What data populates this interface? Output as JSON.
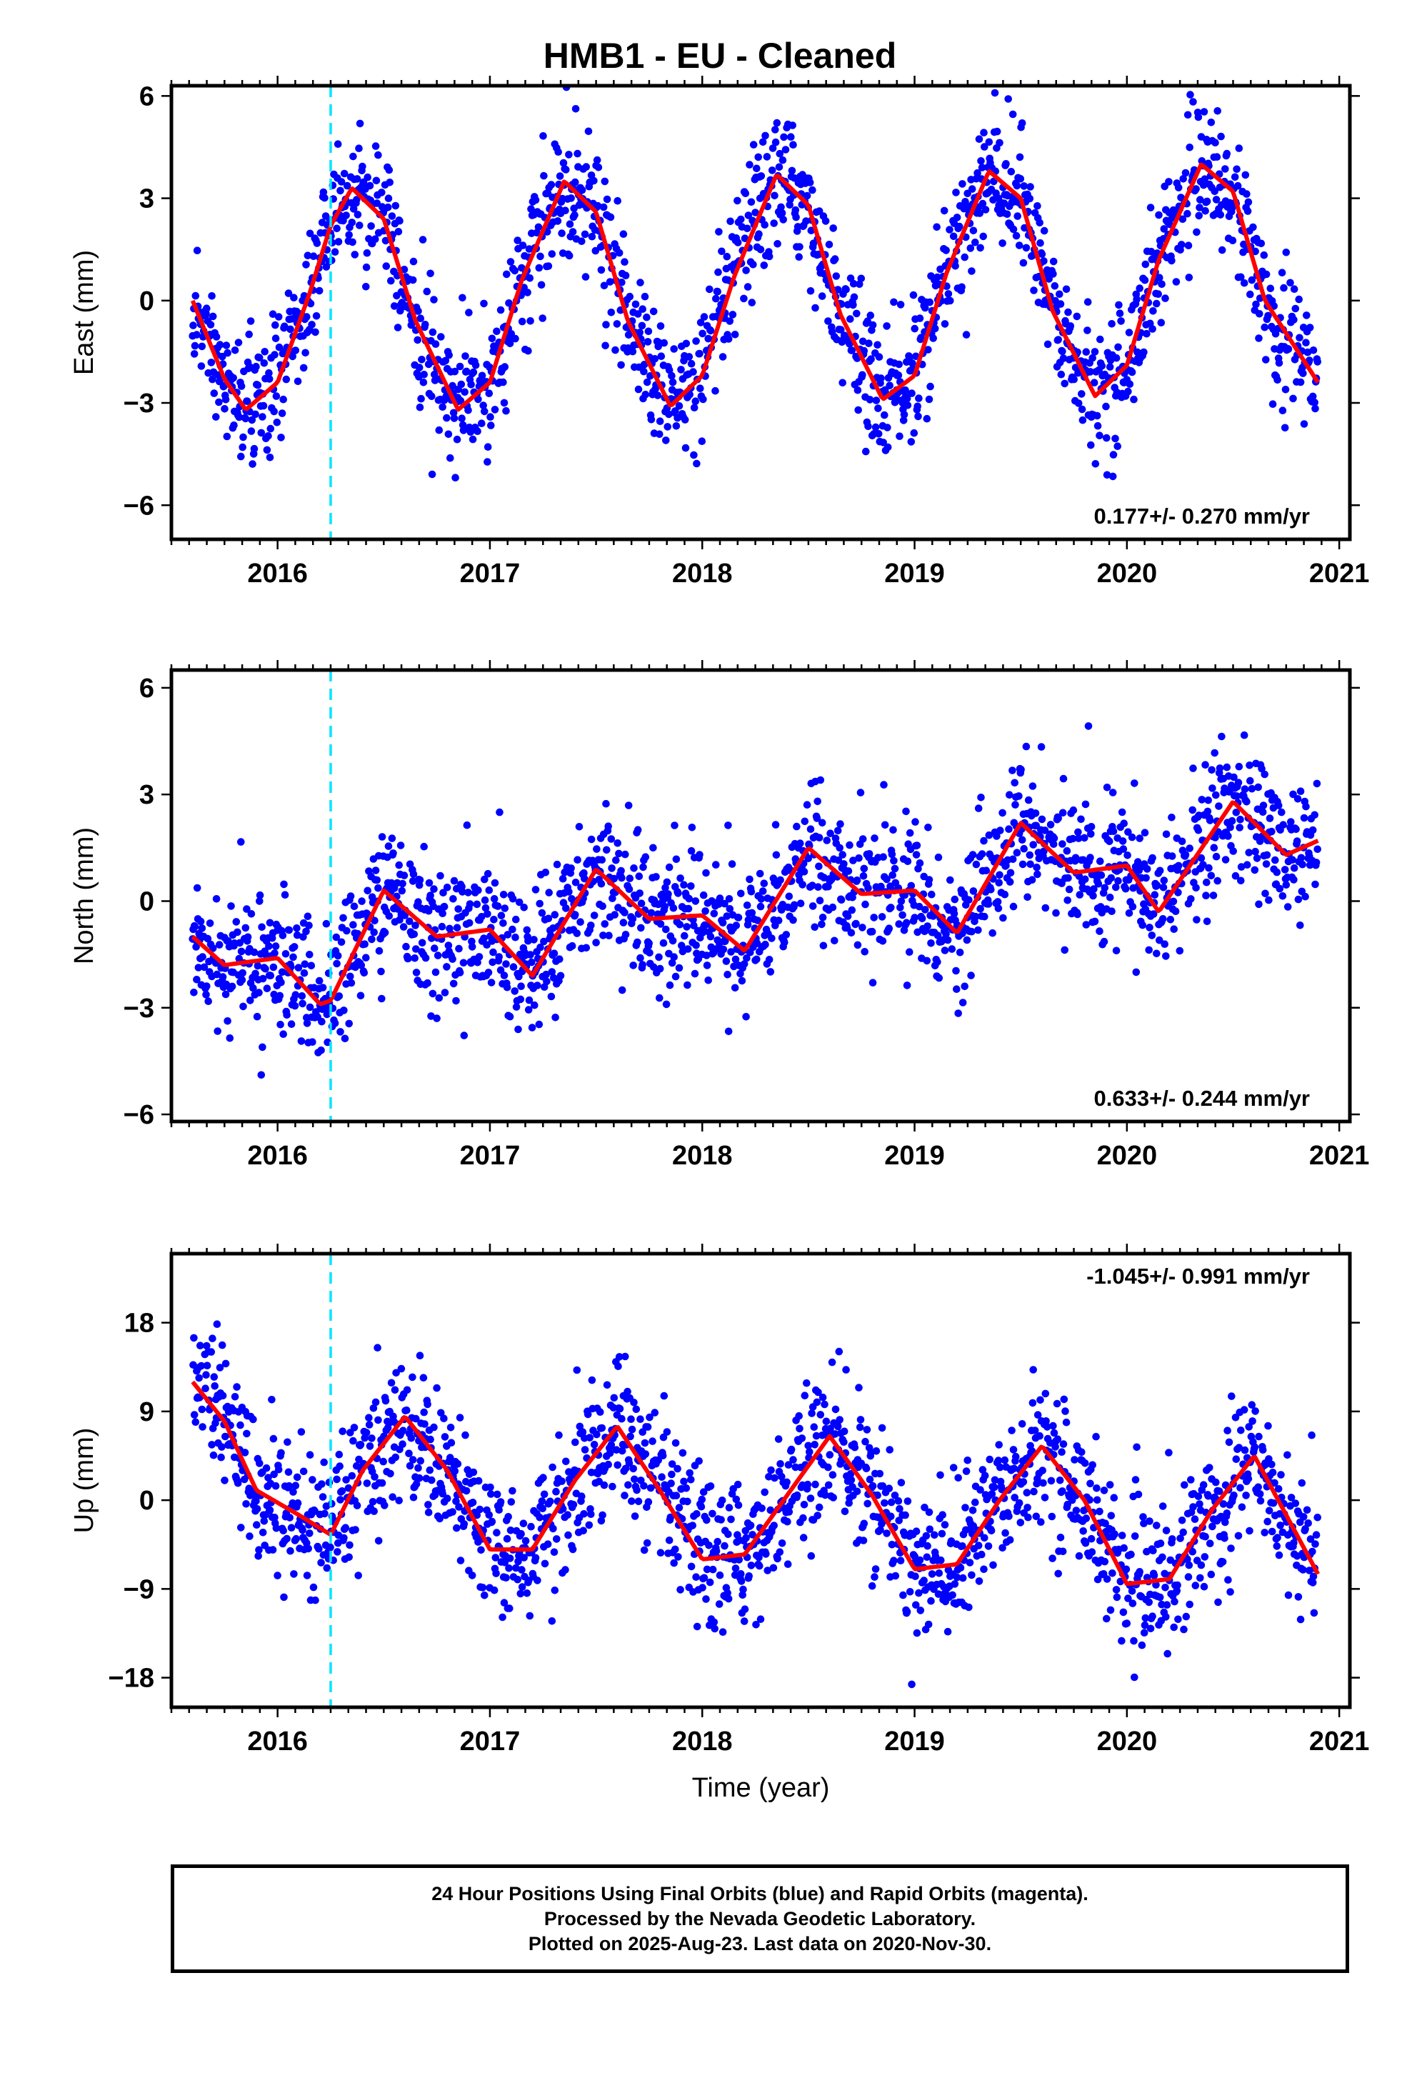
{
  "title": "HMB1  - EU - Cleaned",
  "footer": {
    "lines": [
      "24 Hour Positions Using Final Orbits (blue) and Rapid Orbits (magenta).",
      "Processed by the Nevada Geodetic Laboratory.",
      "Plotted on 2025-Aug-23. Last data on 2020-Nov-30."
    ]
  },
  "colors": {
    "data": "#0000ff",
    "fit": "#ff0000",
    "event_line": "#00e5ff",
    "frame": "#000000"
  },
  "chart_data": [
    {
      "type": "scatter",
      "name": "east",
      "ylabel": "East (mm)",
      "xlabel": "",
      "xlim": [
        2015.5,
        2021.05
      ],
      "ylim": [
        -7,
        6.3
      ],
      "x_ticks": [
        2016,
        2017,
        2018,
        2019,
        2020,
        2021
      ],
      "y_ticks": [
        -6,
        -3,
        0,
        3,
        6
      ],
      "y_tick_labels": [
        "−6",
        "−3",
        "0",
        "3",
        "6"
      ],
      "event_line_x": 2016.25,
      "rate_label": "0.177+/- 0.270 mm/yr",
      "rate_label_position": "bottom-right",
      "fit_trend": 0.177,
      "fit_annual_amplitude": 3.4,
      "fit_annual_peak_fraction": 0.36,
      "fit_offset": 0.2,
      "scatter_sd": 0.95,
      "series": [
        {
          "name": "",
          "x": [
            2015.6,
            2015.75,
            2015.85,
            2016.0,
            2016.15,
            2016.25,
            2016.35,
            2016.5,
            2016.65,
            2016.85,
            2017.0,
            2017.15,
            2017.35,
            2017.5,
            2017.65,
            2017.85,
            2018.0,
            2018.15,
            2018.35,
            2018.5,
            2018.65,
            2018.85,
            2019.0,
            2019.15,
            2019.35,
            2019.5,
            2019.65,
            2019.85,
            2020.0,
            2020.15,
            2020.35,
            2020.5,
            2020.65,
            2020.9
          ],
          "y": [
            0.0,
            -2.3,
            -3.2,
            -2.4,
            0.2,
            2.2,
            3.3,
            2.4,
            -0.6,
            -3.2,
            -2.4,
            0.6,
            3.5,
            2.6,
            -0.6,
            -3.1,
            -2.2,
            0.7,
            3.7,
            2.8,
            -0.4,
            -2.9,
            -2.2,
            0.8,
            3.8,
            3.0,
            -0.3,
            -2.8,
            -1.9,
            1.2,
            4.0,
            3.2,
            0.0,
            -2.4
          ]
        }
      ]
    },
    {
      "type": "scatter",
      "name": "north",
      "ylabel": "North (mm)",
      "xlabel": "",
      "xlim": [
        2015.5,
        2021.05
      ],
      "ylim": [
        -6.2,
        6.5
      ],
      "x_ticks": [
        2016,
        2017,
        2018,
        2019,
        2020,
        2021
      ],
      "y_ticks": [
        -6,
        -3,
        0,
        3,
        6
      ],
      "y_tick_labels": [
        "−6",
        "−3",
        "0",
        "3",
        "6"
      ],
      "event_line_x": 2016.25,
      "rate_label": "0.633+/- 0.244 mm/yr",
      "rate_label_position": "bottom-right",
      "fit_trend": 0.633,
      "fit_annual_amplitude": 0.6,
      "fit_semiannual_amplitude": 0.6,
      "fit_annual_peak_fraction": 0.55,
      "fit_offset": -1.2,
      "scatter_sd": 0.95,
      "series": [
        {
          "name": "",
          "x": [
            2015.6,
            2015.75,
            2016.0,
            2016.2,
            2016.25,
            2016.5,
            2016.75,
            2017.0,
            2017.2,
            2017.5,
            2017.75,
            2018.0,
            2018.2,
            2018.5,
            2018.75,
            2019.0,
            2019.2,
            2019.5,
            2019.75,
            2020.0,
            2020.15,
            2020.5,
            2020.75,
            2020.9
          ],
          "y": [
            -1.0,
            -1.8,
            -1.6,
            -2.9,
            -2.8,
            0.3,
            -1.0,
            -0.8,
            -2.1,
            0.9,
            -0.5,
            -0.4,
            -1.4,
            1.5,
            0.2,
            0.3,
            -0.9,
            2.2,
            0.8,
            1.0,
            -0.3,
            2.8,
            1.3,
            1.7
          ]
        }
      ]
    },
    {
      "type": "scatter",
      "name": "up",
      "ylabel": "Up (mm)",
      "xlabel": "Time (year)",
      "xlim": [
        2015.5,
        2021.05
      ],
      "ylim": [
        -21,
        25
      ],
      "x_ticks": [
        2016,
        2017,
        2018,
        2019,
        2020,
        2021
      ],
      "y_ticks": [
        -18,
        -9,
        0,
        9,
        18
      ],
      "y_tick_labels": [
        "−18",
        "−9",
        "0",
        "9",
        "18"
      ],
      "event_line_x": 2016.25,
      "rate_label": "-1.045+/- 0.991 mm/yr",
      "rate_label_position": "top-right",
      "fit_trend": -1.045,
      "fit_annual_amplitude": 6.5,
      "fit_annual_peak_fraction": 0.6,
      "fit_offset": 1.0,
      "scatter_sd": 3.6,
      "series": [
        {
          "name": "",
          "x": [
            2015.6,
            2015.75,
            2015.9,
            2016.1,
            2016.25,
            2016.4,
            2016.6,
            2016.8,
            2017.0,
            2017.2,
            2017.4,
            2017.6,
            2017.8,
            2018.0,
            2018.2,
            2018.4,
            2018.6,
            2018.8,
            2019.0,
            2019.2,
            2019.4,
            2019.6,
            2019.8,
            2020.0,
            2020.2,
            2020.4,
            2020.6,
            2020.9
          ],
          "y": [
            12.0,
            8.0,
            1.0,
            -1.5,
            -3.5,
            3.0,
            8.5,
            3.0,
            -5.0,
            -5.0,
            2.0,
            7.5,
            1.0,
            -6.0,
            -5.5,
            0.5,
            6.5,
            0.5,
            -7.0,
            -6.5,
            0.0,
            5.5,
            0.0,
            -8.5,
            -8.0,
            -1.0,
            4.5,
            -7.5
          ]
        }
      ]
    }
  ]
}
